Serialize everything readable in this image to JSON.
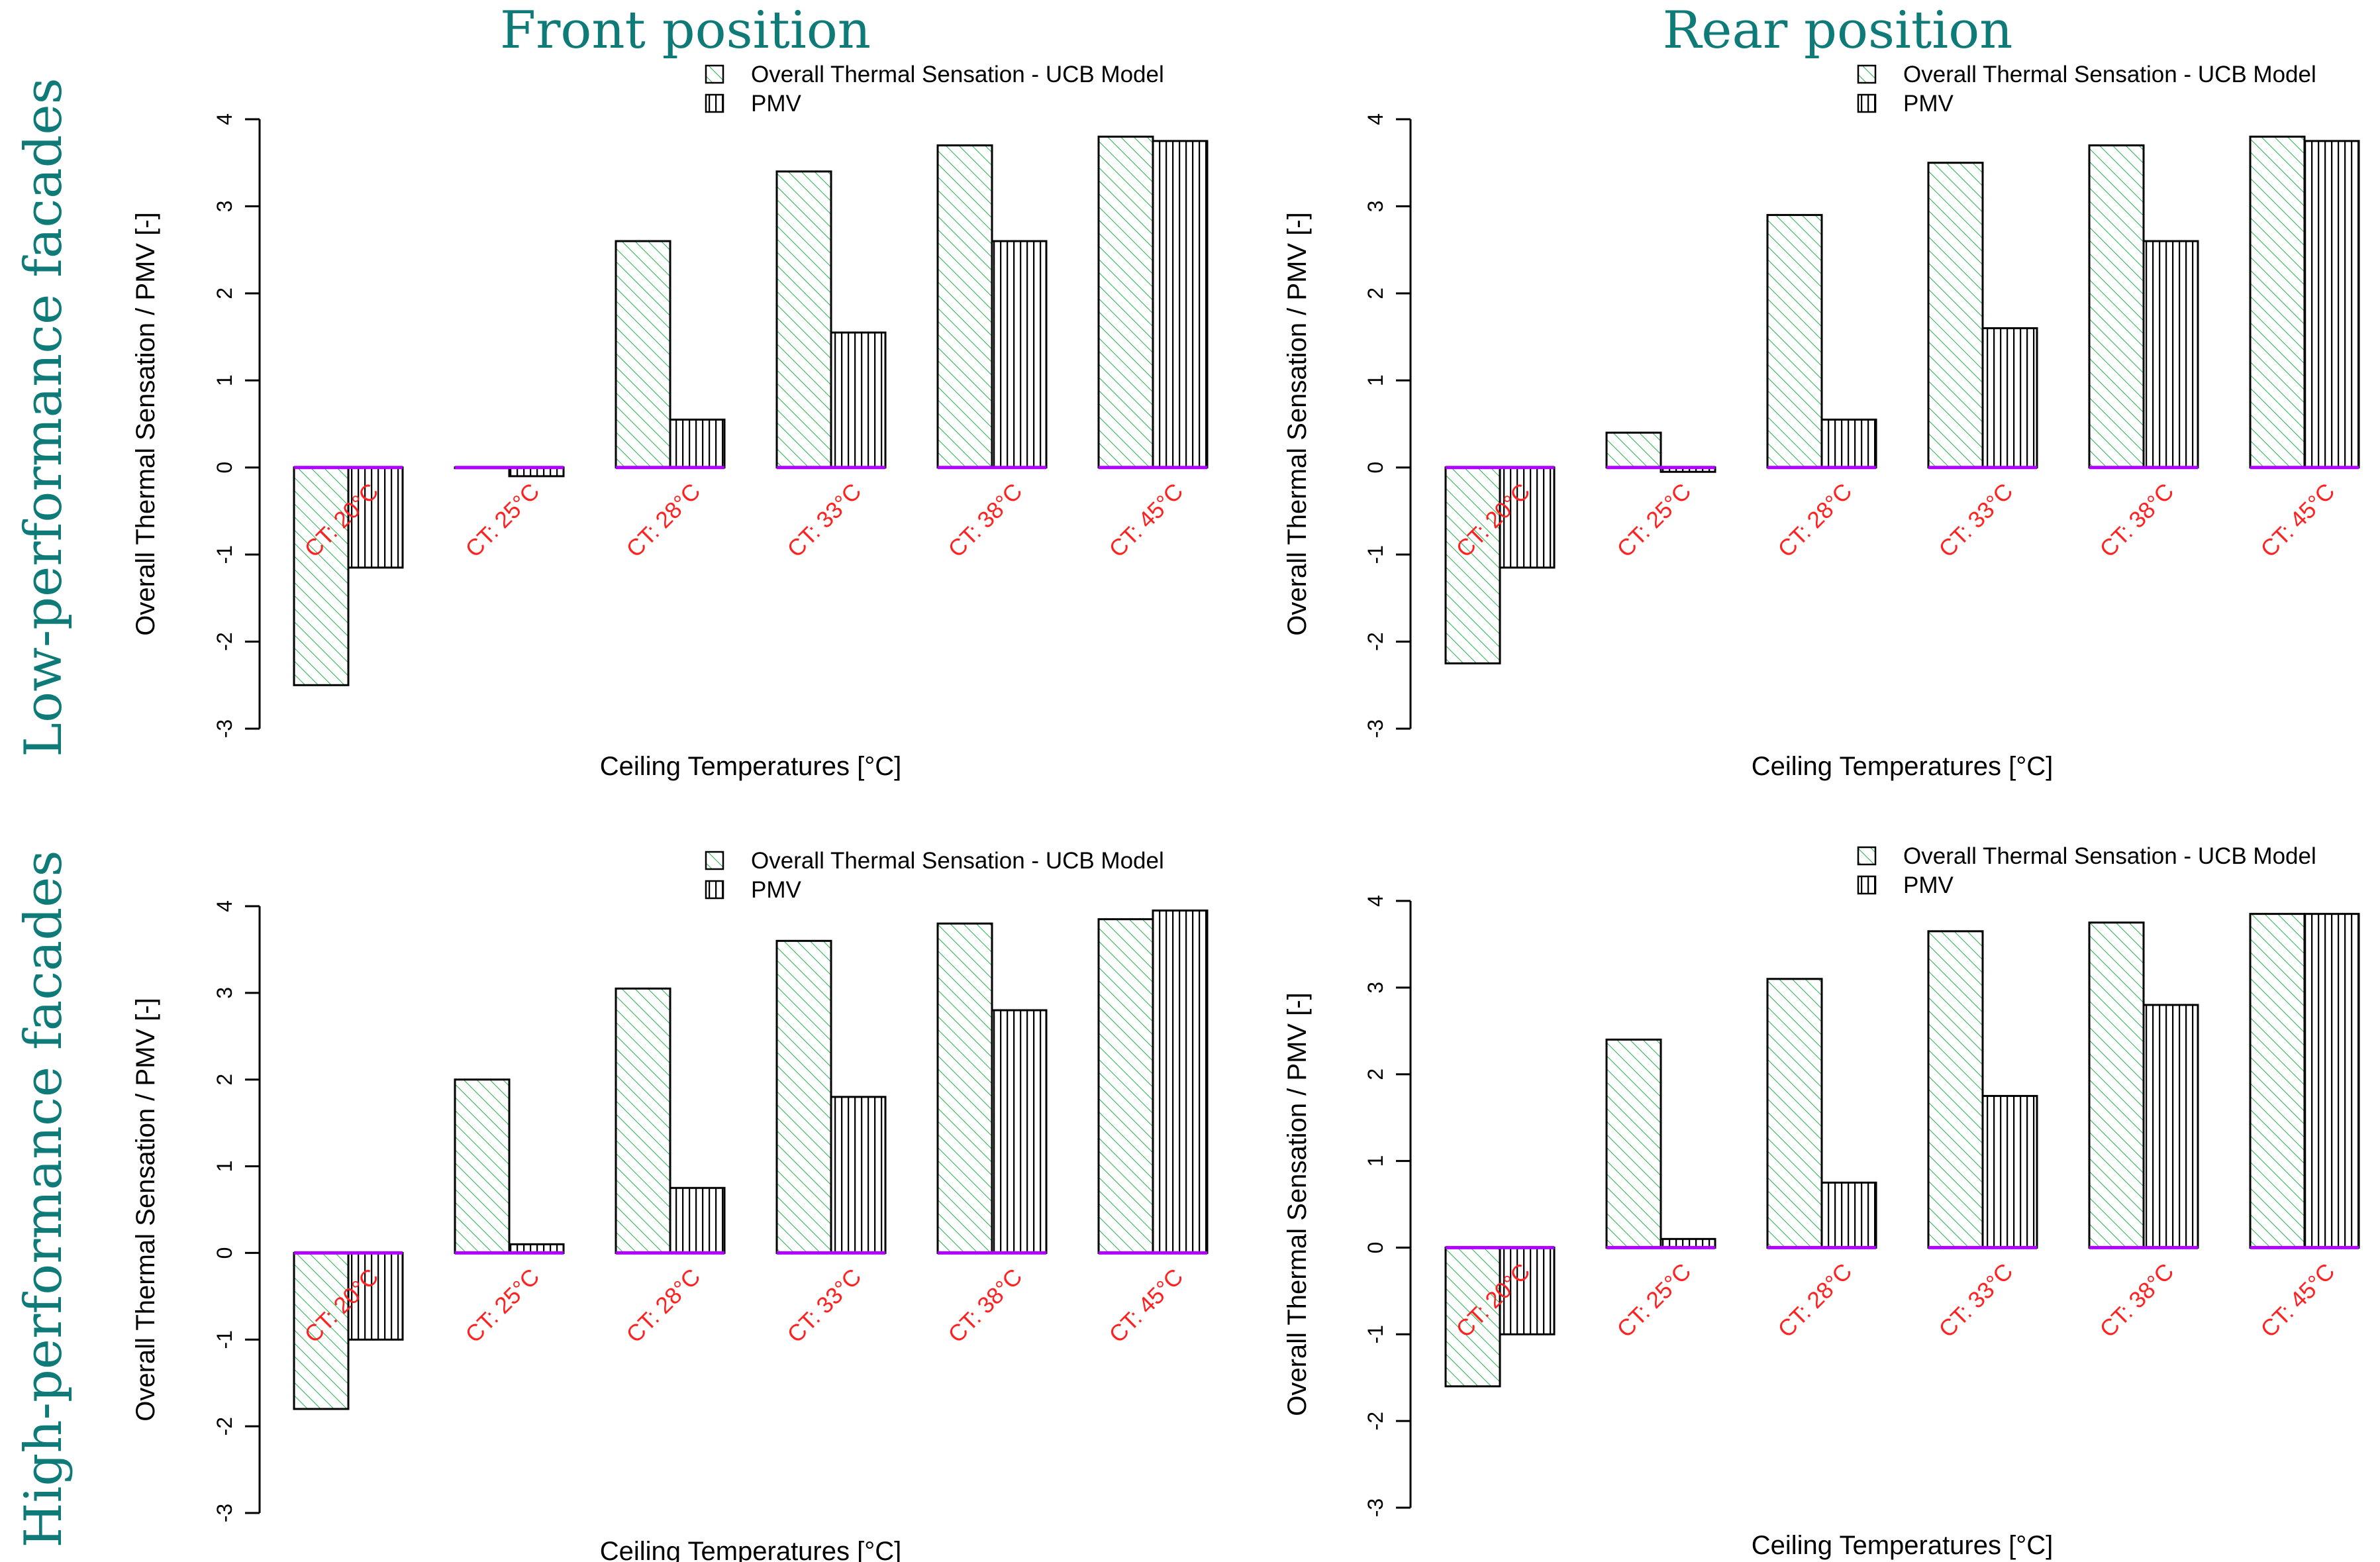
{
  "columns": [
    "Front position",
    "Rear position"
  ],
  "rows": [
    "Low-performance facades",
    "High-performance facades"
  ],
  "colors": {
    "title": "#0e7b78",
    "ucb_stroke": "#000000",
    "ucb_hatch": "#22b14c",
    "pmv_stroke": "#000000",
    "zero_line": "#b000ff",
    "category_label": "#ff2020"
  },
  "chart_data": [
    {
      "type": "bar",
      "column": "Front position",
      "row": "Low-performance facades",
      "categories": [
        "CT: 20°C",
        "CT: 25°C",
        "CT: 28°C",
        "CT: 33°C",
        "CT: 38°C",
        "CT: 45°C"
      ],
      "series": [
        {
          "name": "Overall Thermal Sensation - UCB Model",
          "values": [
            -2.5,
            0.0,
            2.6,
            3.4,
            3.7,
            3.8
          ]
        },
        {
          "name": "PMV",
          "values": [
            -1.15,
            -0.1,
            0.55,
            1.55,
            2.6,
            3.75
          ]
        }
      ],
      "xlabel": "Ceiling Temperatures [°C]",
      "ylabel": "Overall Thermal Sensation / PMV [-]",
      "yticks": [
        -3,
        -2,
        -1,
        0,
        1,
        2,
        3,
        4
      ],
      "ylim": [
        -3,
        4
      ]
    },
    {
      "type": "bar",
      "column": "Rear position",
      "row": "Low-performance facades",
      "categories": [
        "CT: 20°C",
        "CT: 25°C",
        "CT: 28°C",
        "CT: 33°C",
        "CT: 38°C",
        "CT: 45°C"
      ],
      "series": [
        {
          "name": "Overall Thermal Sensation - UCB Model",
          "values": [
            -2.25,
            0.4,
            2.9,
            3.5,
            3.7,
            3.8
          ]
        },
        {
          "name": "PMV",
          "values": [
            -1.15,
            -0.05,
            0.55,
            1.6,
            2.6,
            3.75
          ]
        }
      ],
      "xlabel": "Ceiling Temperatures [°C]",
      "ylabel": "Overall Thermal Sensation / PMV [-]",
      "yticks": [
        -3,
        -2,
        -1,
        0,
        1,
        2,
        3,
        4
      ],
      "ylim": [
        -3,
        4
      ]
    },
    {
      "type": "bar",
      "column": "Front position",
      "row": "High-performance facades",
      "categories": [
        "CT: 20°C",
        "CT: 25°C",
        "CT: 28°C",
        "CT: 33°C",
        "CT: 38°C",
        "CT: 45°C"
      ],
      "series": [
        {
          "name": "Overall Thermal Sensation - UCB Model",
          "values": [
            -1.8,
            2.0,
            3.05,
            3.6,
            3.8,
            3.85
          ]
        },
        {
          "name": "PMV",
          "values": [
            -1.0,
            0.1,
            0.75,
            1.8,
            2.8,
            3.95
          ]
        }
      ],
      "xlabel": "Ceiling Temperatures [°C]",
      "ylabel": "Overall Thermal Sensation / PMV [-]",
      "yticks": [
        -3,
        -2,
        -1,
        0,
        1,
        2,
        3,
        4
      ],
      "ylim": [
        -3,
        4
      ]
    },
    {
      "type": "bar",
      "column": "Rear position",
      "row": "High-performance facades",
      "categories": [
        "CT: 20°C",
        "CT: 25°C",
        "CT: 28°C",
        "CT: 33°C",
        "CT: 38°C",
        "CT: 45°C"
      ],
      "series": [
        {
          "name": "Overall Thermal Sensation - UCB Model",
          "values": [
            -1.6,
            2.4,
            3.1,
            3.65,
            3.75,
            3.85
          ]
        },
        {
          "name": "PMV",
          "values": [
            -1.0,
            0.1,
            0.75,
            1.75,
            2.8,
            3.85
          ]
        }
      ],
      "xlabel": "Ceiling Temperatures [°C]",
      "ylabel": "Overall Thermal Sensation / PMV [-]",
      "yticks": [
        -3,
        -2,
        -1,
        0,
        1,
        2,
        3,
        4
      ],
      "ylim": [
        -3,
        4
      ]
    }
  ]
}
